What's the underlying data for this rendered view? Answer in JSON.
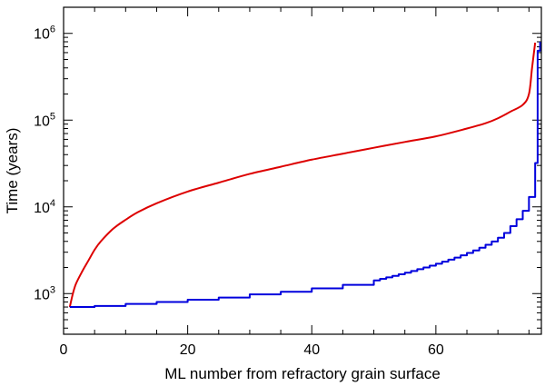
{
  "chart_data": {
    "type": "line",
    "title": "",
    "xlabel": "ML number from refractory grain surface",
    "ylabel": "Time (years)",
    "x_scale": "linear",
    "y_scale": "log",
    "xlim": [
      0,
      77
    ],
    "ylim": [
      340,
      2000000
    ],
    "x_ticks": [
      {
        "value": 0,
        "label": "0"
      },
      {
        "value": 20,
        "label": "20"
      },
      {
        "value": 40,
        "label": "40"
      },
      {
        "value": 60,
        "label": "60"
      }
    ],
    "y_ticks": [
      {
        "value": 1000,
        "base": "10",
        "exp": "3"
      },
      {
        "value": 10000,
        "base": "10",
        "exp": "4"
      },
      {
        "value": 100000,
        "base": "10",
        "exp": "5"
      },
      {
        "value": 1000000,
        "base": "10",
        "exp": "6"
      }
    ],
    "series": [
      {
        "name": "red-curve",
        "color": "#dd0000",
        "style": "smooth",
        "points": [
          [
            1,
            700
          ],
          [
            1.5,
            1000
          ],
          [
            2,
            1300
          ],
          [
            3,
            1800
          ],
          [
            4,
            2400
          ],
          [
            5,
            3200
          ],
          [
            6,
            4000
          ],
          [
            8,
            5600
          ],
          [
            10,
            7100
          ],
          [
            12,
            8700
          ],
          [
            15,
            11000
          ],
          [
            20,
            15000
          ],
          [
            25,
            19000
          ],
          [
            30,
            24000
          ],
          [
            35,
            29000
          ],
          [
            40,
            35000
          ],
          [
            45,
            41000
          ],
          [
            50,
            48000
          ],
          [
            55,
            56000
          ],
          [
            60,
            65000
          ],
          [
            65,
            80000
          ],
          [
            68,
            92000
          ],
          [
            70,
            105000
          ],
          [
            72,
            125000
          ],
          [
            74,
            150000
          ],
          [
            75,
            200000
          ],
          [
            75.5,
            400000
          ],
          [
            76,
            780000
          ]
        ]
      },
      {
        "name": "blue-step",
        "color": "#0000dd",
        "style": "step",
        "points": [
          [
            1,
            700
          ],
          [
            5,
            720
          ],
          [
            10,
            760
          ],
          [
            15,
            800
          ],
          [
            20,
            850
          ],
          [
            25,
            900
          ],
          [
            30,
            980
          ],
          [
            35,
            1050
          ],
          [
            40,
            1150
          ],
          [
            45,
            1260
          ],
          [
            50,
            1420
          ],
          [
            51,
            1480
          ],
          [
            52,
            1540
          ],
          [
            53,
            1600
          ],
          [
            54,
            1670
          ],
          [
            55,
            1740
          ],
          [
            56,
            1820
          ],
          [
            57,
            1910
          ],
          [
            58,
            2000
          ],
          [
            59,
            2100
          ],
          [
            60,
            2210
          ],
          [
            61,
            2330
          ],
          [
            62,
            2460
          ],
          [
            63,
            2600
          ],
          [
            64,
            2760
          ],
          [
            65,
            2940
          ],
          [
            66,
            3140
          ],
          [
            67,
            3380
          ],
          [
            68,
            3660
          ],
          [
            69,
            3990
          ],
          [
            70,
            4400
          ],
          [
            71,
            5000
          ],
          [
            72,
            6000
          ],
          [
            73,
            7200
          ],
          [
            74,
            9000
          ],
          [
            75,
            13000
          ],
          [
            76,
            32000
          ],
          [
            76.4,
            630000
          ],
          [
            76.8,
            800000
          ]
        ]
      }
    ]
  }
}
